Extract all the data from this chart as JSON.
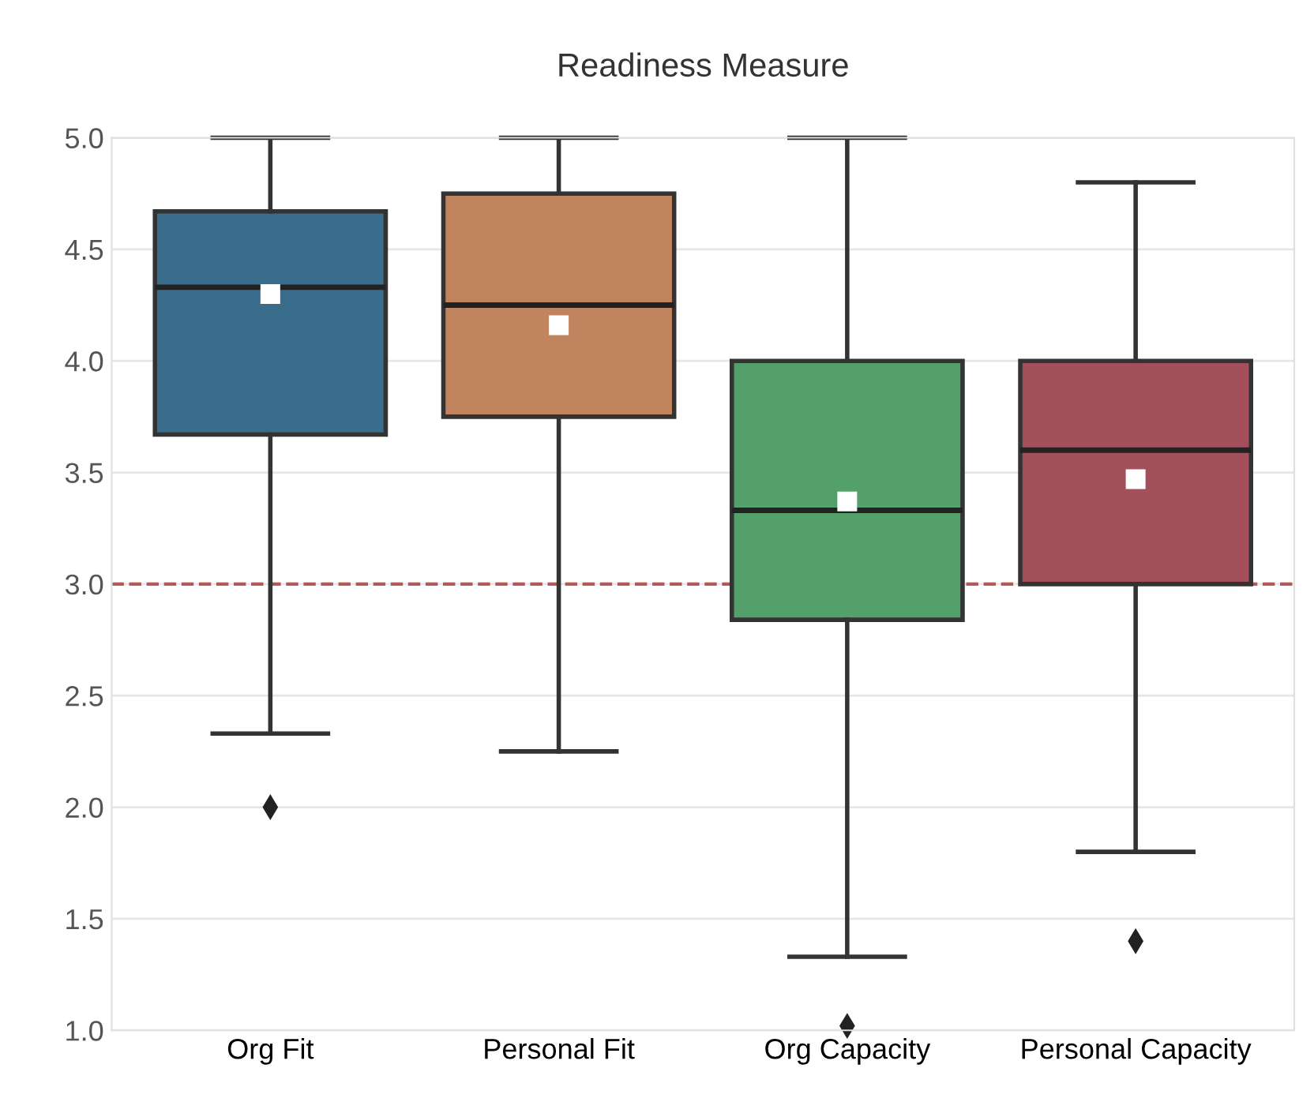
{
  "chart_data": {
    "type": "box",
    "title": "Readiness Measure",
    "categories": [
      "Org Fit",
      "Personal Fit",
      "Org Capacity",
      "Personal Capacity"
    ],
    "colors": [
      "#3a6d8c",
      "#c0845f",
      "#54a06a",
      "#a3505c"
    ],
    "boxes": [
      {
        "low": 2.33,
        "q1": 3.67,
        "median": 4.33,
        "q3": 4.67,
        "high": 5.0,
        "mean": 4.3,
        "outliers": [
          2.0
        ]
      },
      {
        "low": 2.25,
        "q1": 3.75,
        "median": 4.25,
        "q3": 4.75,
        "high": 5.0,
        "mean": 4.16
      },
      {
        "low": 1.33,
        "q1": 2.84,
        "median": 3.33,
        "q3": 4.0,
        "high": 5.0,
        "mean": 3.37,
        "outliers": [
          1.02
        ]
      },
      {
        "low": 1.8,
        "q1": 3.0,
        "median": 3.6,
        "q3": 4.0,
        "high": 4.8,
        "mean": 3.47,
        "outliers": [
          1.4
        ]
      }
    ],
    "ylim": [
      1.0,
      5.0
    ],
    "yticks": [
      {
        "value": 1,
        "label": "1.0"
      },
      1.5,
      {
        "value": 2,
        "label": "2.0"
      },
      2.5,
      {
        "value": 3,
        "label": "3.0"
      },
      3.5,
      {
        "value": 4,
        "label": "4.0"
      },
      4.5,
      {
        "value": 5,
        "label": "5.0"
      }
    ],
    "ref_lines": [
      {
        "axis": "y",
        "value": 3.0,
        "color": "#b05a5a",
        "line_style": "dashed"
      }
    ],
    "grid": "y"
  }
}
